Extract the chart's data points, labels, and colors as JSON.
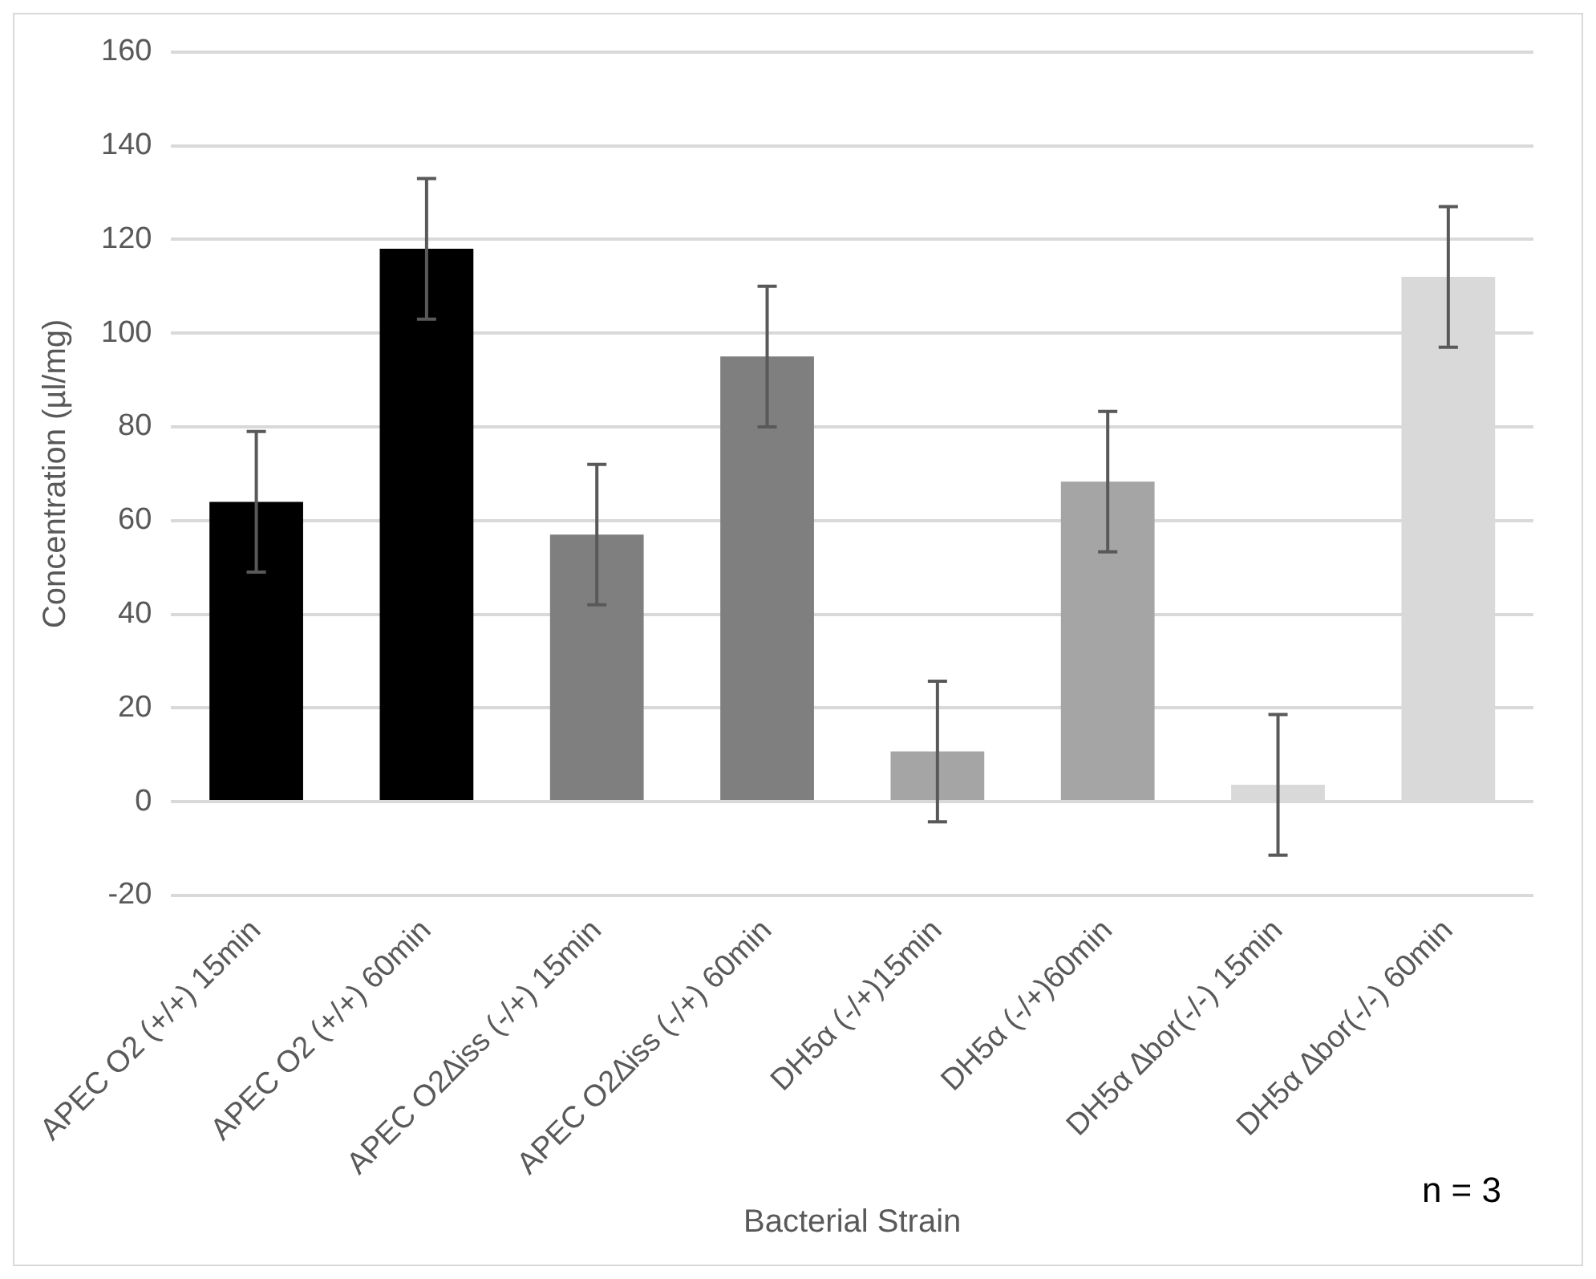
{
  "chart_data": {
    "type": "bar",
    "xlabel": "Bacterial Strain",
    "ylabel": "Concentration (µl/mg)",
    "categories": [
      "APEC O2 (+/+) 15min",
      "APEC O2 (+/+) 60min",
      "APEC O2∆iss (-/+) 15min",
      "APEC O2∆iss (-/+) 60min",
      "DH5α (-/+)15min",
      "DH5α (-/+)60min",
      "DH5α ∆bor(-/-) 15min",
      "DH5α ∆bor(-/-) 60min"
    ],
    "values": [
      64,
      118,
      57,
      95,
      10.7,
      68.3,
      3.6,
      112
    ],
    "colors": [
      "#000000",
      "#000000",
      "#7f7f7f",
      "#7f7f7f",
      "#a5a5a5",
      "#a5a5a5",
      "#d9d9d9",
      "#d9d9d9"
    ],
    "errors": [
      15,
      15,
      15,
      15,
      15,
      15,
      15,
      15
    ],
    "ylim": [
      -20,
      160
    ],
    "yticks": [
      -20,
      0,
      20,
      40,
      60,
      80,
      100,
      120,
      140,
      160
    ],
    "grid": "y",
    "annotations": [
      "n = 3"
    ]
  }
}
